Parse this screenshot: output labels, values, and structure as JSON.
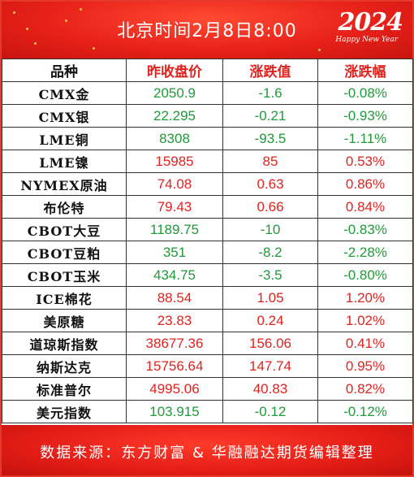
{
  "header": {
    "title": "北京时间2月8日8:00",
    "year_badge": "2024",
    "year_badge_sub": "Happy New Year"
  },
  "table": {
    "columns": [
      "品种",
      "昨收盘价",
      "涨跌值",
      "涨跌幅"
    ],
    "rows": [
      {
        "name": "CMX金",
        "close": "2050.9",
        "change": "-1.6",
        "pct": "-0.08%"
      },
      {
        "name": "CMX银",
        "close": "22.295",
        "change": "-0.21",
        "pct": "-0.93%"
      },
      {
        "name": "LME铜",
        "close": "8308",
        "change": "-93.5",
        "pct": "-1.11%"
      },
      {
        "name": "LME镍",
        "close": "15985",
        "change": "85",
        "pct": "0.53%"
      },
      {
        "name": "NYMEX原油",
        "close": "74.08",
        "change": "0.63",
        "pct": "0.86%"
      },
      {
        "name": "布伦特",
        "close": "79.43",
        "change": "0.66",
        "pct": "0.84%"
      },
      {
        "name": "CBOT大豆",
        "close": "1189.75",
        "change": "-10",
        "pct": "-0.83%"
      },
      {
        "name": "CBOT豆粕",
        "close": "351",
        "change": "-8.2",
        "pct": "-2.28%"
      },
      {
        "name": "CBOT玉米",
        "close": "434.75",
        "change": "-3.5",
        "pct": "-0.80%"
      },
      {
        "name": "ICE棉花",
        "close": "88.54",
        "change": "1.05",
        "pct": "1.20%"
      },
      {
        "name": "美原糖",
        "close": "23.83",
        "change": "0.24",
        "pct": "1.02%"
      },
      {
        "name": "道琼斯指数",
        "close": "38677.36",
        "change": "156.06",
        "pct": "0.41%"
      },
      {
        "name": "纳斯达克",
        "close": "15756.64",
        "change": "147.74",
        "pct": "0.95%"
      },
      {
        "name": "标准普尔",
        "close": "4995.06",
        "change": "40.83",
        "pct": "0.82%"
      },
      {
        "name": "美元指数",
        "close": "103.915",
        "change": "-0.12",
        "pct": "-0.12%"
      }
    ]
  },
  "footer": {
    "source": "数据来源：东方财富 & 华融融达期货编辑整理"
  },
  "colors": {
    "up": "#e0231f",
    "down": "#1f9a3a",
    "banner": "#e8221a"
  }
}
